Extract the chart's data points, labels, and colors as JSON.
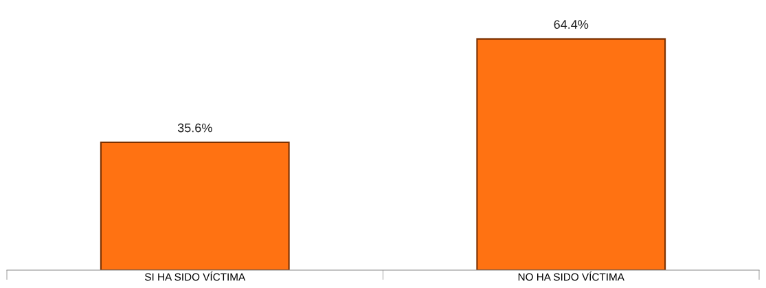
{
  "chart_data": {
    "type": "bar",
    "categories": [
      "SI HA SIDO VÍCTIMA",
      "NO HA SIDO VÍCTIMA"
    ],
    "values": [
      35.6,
      64.4
    ],
    "color": "#ff7212",
    "value_labels": [
      "35.6%",
      "64.4%"
    ],
    "grid": false,
    "legend": false
  }
}
